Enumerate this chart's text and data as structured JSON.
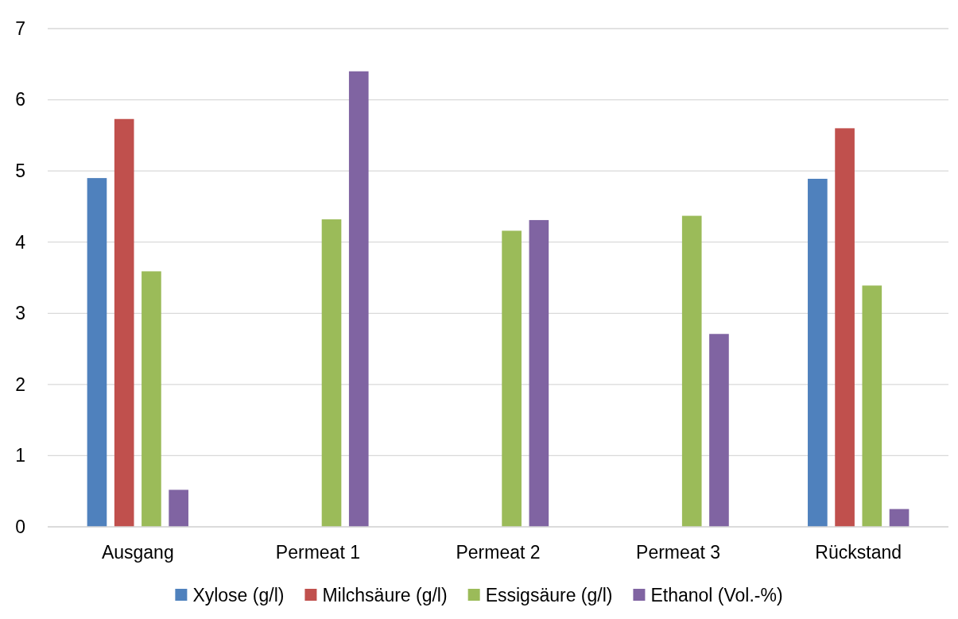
{
  "chart_data": {
    "type": "bar",
    "categories": [
      "Ausgang",
      "Permeat 1",
      "Permeat 2",
      "Permeat 3",
      "Rückstand"
    ],
    "series": [
      {
        "name": "Xylose (g/l)",
        "color": "#4f81bd",
        "values": [
          4.9,
          null,
          null,
          null,
          4.89
        ]
      },
      {
        "name": "Milchsäure (g/l)",
        "color": "#c0504d",
        "values": [
          5.73,
          null,
          null,
          null,
          5.6
        ]
      },
      {
        "name": "Essigsäure (g/l)",
        "color": "#9bbb59",
        "values": [
          3.59,
          4.32,
          4.16,
          4.37,
          3.39
        ]
      },
      {
        "name": "Ethanol (Vol.-%)",
        "color": "#8064a2",
        "values": [
          0.52,
          6.4,
          4.31,
          2.71,
          0.25
        ]
      }
    ],
    "ylim": [
      0,
      7
    ],
    "yticks": [
      0,
      1,
      2,
      3,
      4,
      5,
      6,
      7
    ],
    "grid": "y",
    "legend": "bottom"
  }
}
